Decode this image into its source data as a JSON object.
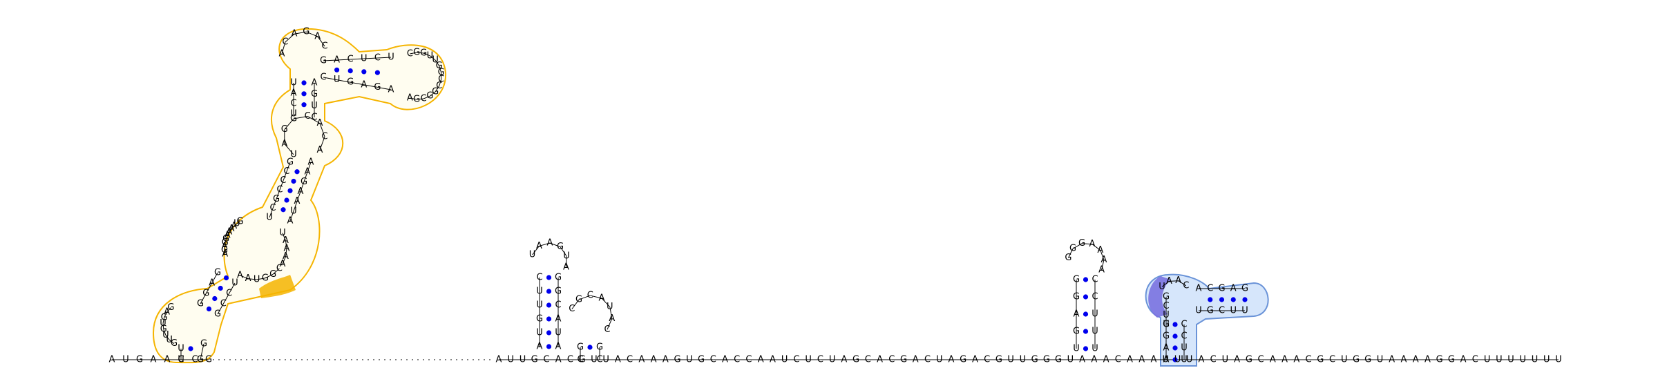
{
  "colors": {
    "hairpin_outline": "#f5b400",
    "hairpin_highlight": "#f5b400",
    "pseudoknot_fill": "#d6e6fb",
    "pseudoknot_outline": "#6a93d8",
    "pseudoknot_highlight": "#7a72e0",
    "base_pair_dot": "#0000ee",
    "text": "#000000"
  },
  "backbone": {
    "left_segment": "AUGAAUCG",
    "middle_segment": "AUUGCACGUUACAAAGUGCACCAAUCUCUAGCACGACUAGACGUUGGGUAAACAAAUUUACUAGCAAACGCUGGUAAAAGGACUUUUUUU"
  },
  "large_hairpin": {
    "loop_top_left": "ACAGAC",
    "loop_right": "CGGUUGGCCGGCGA",
    "stem_top_5p": "GACUCU",
    "stem_top_3p": "CUGAGA",
    "left_arm": "UACUUAUCCCGGUAAUAAAGGAGGAAA",
    "right_arm": "AGUCAGGAAGAAUAUAGAG",
    "bulge_orange": "CGGUAA",
    "base_loop": "GAGGAGUGUUGCU"
  },
  "middle_structure": {
    "hairpin_loop": "UAAGUA",
    "stem_5p": "CUUGUA",
    "stem_3p": "GGCAUA",
    "side_loop": "CGCAUAC",
    "side_stem": "GC"
  },
  "small_hairpin": {
    "loop": "GGGAAAA",
    "stem_5p": "GGAGU",
    "stem_3p": "CCUUU"
  },
  "pseudoknot": {
    "loop": "UAAC",
    "stem_5p": "ACGAG",
    "stem_3p": "UGCUU",
    "left_stem": "CCGAAA",
    "right_stem": "CCCUU",
    "highlight": "UGCU"
  }
}
